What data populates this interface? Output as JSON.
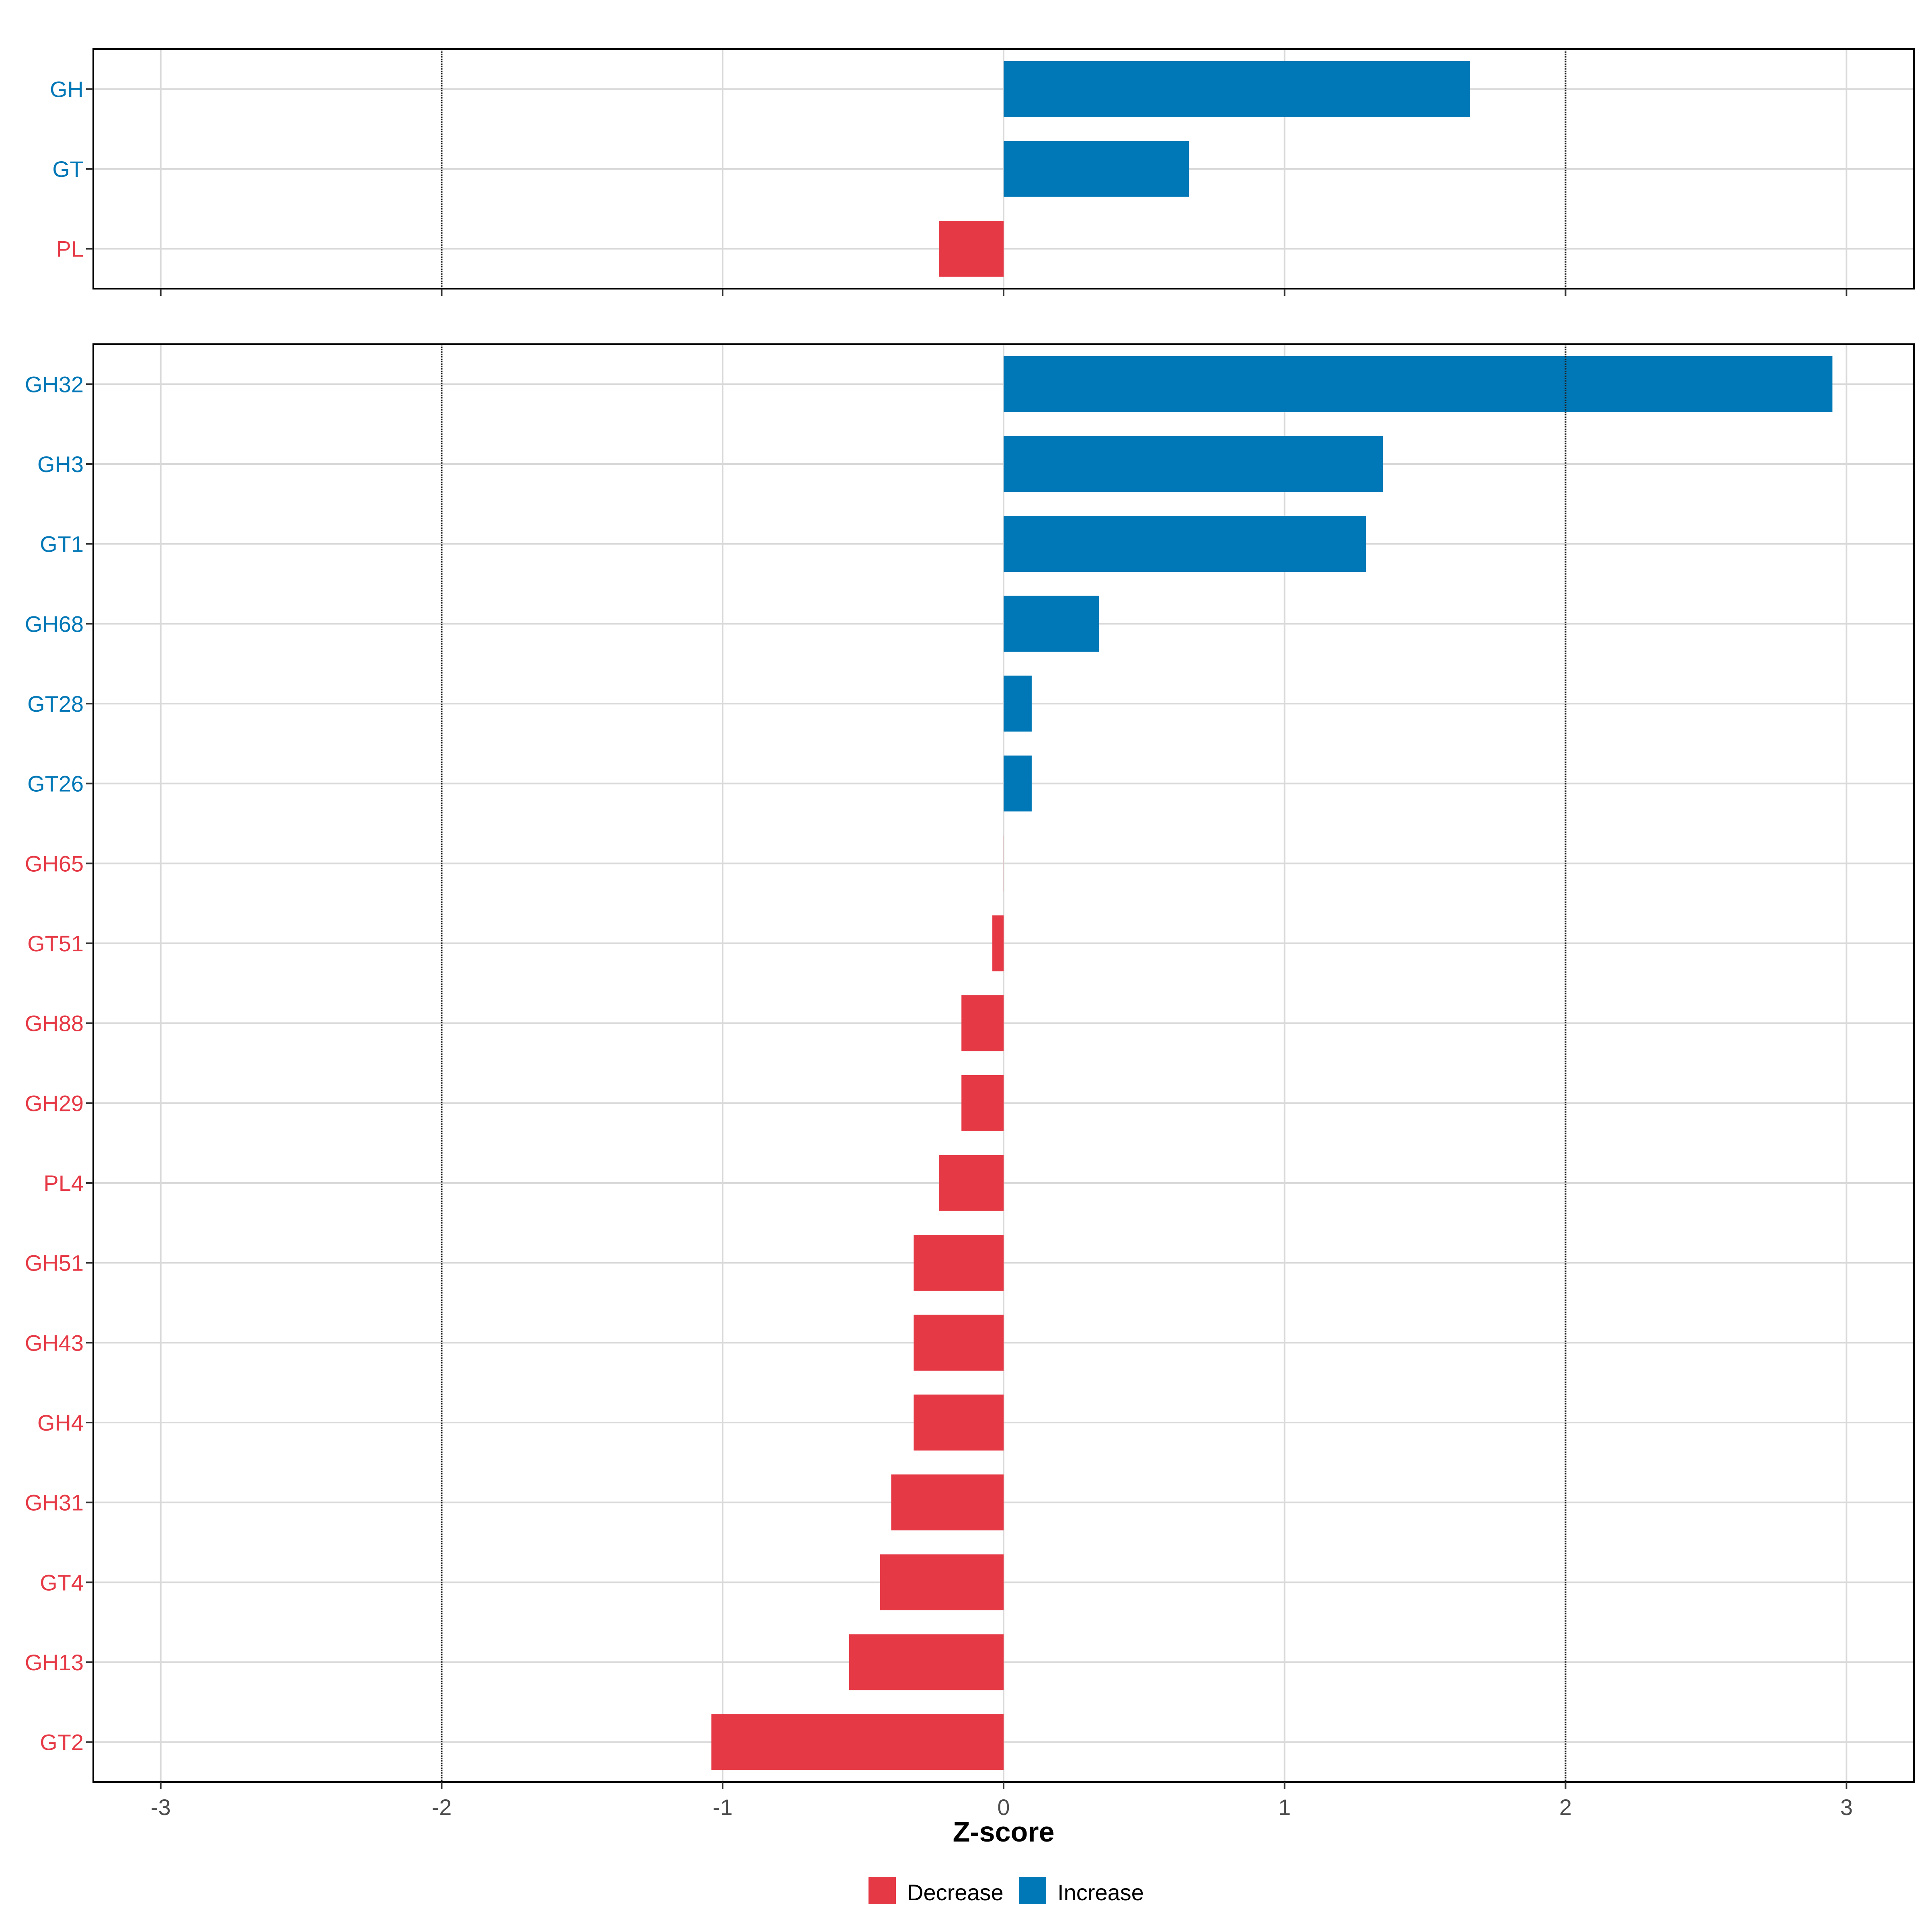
{
  "chart_data": [
    {
      "type": "bar",
      "orientation": "horizontal",
      "panel": "top",
      "categories": [
        "GH",
        "GT",
        "PL"
      ],
      "values": [
        1.66,
        0.66,
        -0.23
      ],
      "directions": [
        "Increase",
        "Increase",
        "Decrease"
      ],
      "xlim": [
        -3.24,
        3.24
      ],
      "xticks": [
        -3,
        -2,
        -1,
        0,
        1,
        2,
        3
      ],
      "xtick_labels": [
        "-3",
        "-2",
        "-1",
        "0",
        "1",
        "2",
        "3"
      ],
      "reference_lines": [
        -2,
        2
      ],
      "grid": true
    },
    {
      "type": "bar",
      "orientation": "horizontal",
      "panel": "bottom",
      "categories": [
        "GH32",
        "GH3",
        "GT1",
        "GH68",
        "GT28",
        "GT26",
        "GH65",
        "GT51",
        "GH88",
        "GH29",
        "PL4",
        "GH51",
        "GH43",
        "GH4",
        "GH31",
        "GT4",
        "GH13",
        "GT2"
      ],
      "values": [
        2.95,
        1.35,
        1.29,
        0.34,
        0.1,
        0.1,
        0.0,
        -0.04,
        -0.15,
        -0.15,
        -0.23,
        -0.32,
        -0.32,
        -0.32,
        -0.4,
        -0.44,
        -0.55,
        -1.04
      ],
      "directions": [
        "Increase",
        "Increase",
        "Increase",
        "Increase",
        "Increase",
        "Increase",
        "Decrease",
        "Decrease",
        "Decrease",
        "Decrease",
        "Decrease",
        "Decrease",
        "Decrease",
        "Decrease",
        "Decrease",
        "Decrease",
        "Decrease",
        "Decrease"
      ],
      "xlim": [
        -3.24,
        3.24
      ],
      "xticks": [
        -3,
        -2,
        -1,
        0,
        1,
        2,
        3
      ],
      "xtick_labels": [
        "-3",
        "-2",
        "-1",
        "0",
        "1",
        "2",
        "3"
      ],
      "reference_lines": [
        -2,
        2
      ],
      "grid": true,
      "xlabel": "Z-score"
    }
  ],
  "legend": {
    "position": "bottom",
    "items": [
      {
        "label": "Decrease",
        "color": "#E63946"
      },
      {
        "label": "Increase",
        "color": "#0077B6"
      }
    ]
  },
  "colors": {
    "Decrease": "#E63946",
    "Increase": "#0077B6",
    "grid": "#D9D9D9",
    "reference": "#222222",
    "frame": "#000000"
  }
}
